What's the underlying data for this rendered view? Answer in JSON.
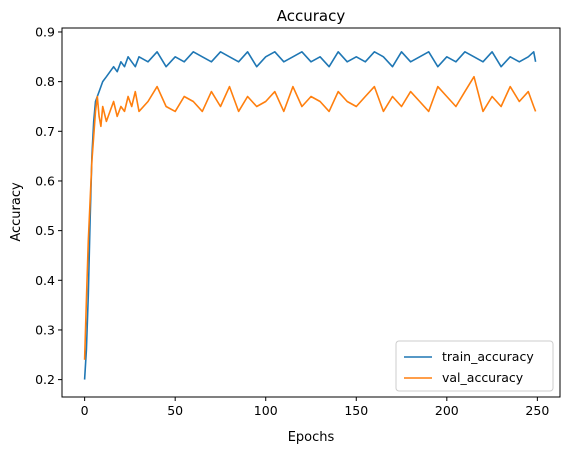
{
  "chart_data": {
    "type": "line",
    "title": "Accuracy",
    "xlabel": "Epochs",
    "ylabel": "Accuracy",
    "xlim": [
      -12.5,
      262.5
    ],
    "ylim": [
      0.165,
      0.908
    ],
    "xticks": [
      0,
      50,
      100,
      150,
      200,
      250
    ],
    "yticks": [
      0.2,
      0.3,
      0.4,
      0.5,
      0.6,
      0.7,
      0.8,
      0.9
    ],
    "grid": false,
    "legend_position": "lower-right",
    "series": [
      {
        "name": "train_accuracy",
        "color": "#1f77b4",
        "x": [
          0,
          1,
          2,
          3,
          4,
          5,
          6,
          7,
          8,
          9,
          10,
          12,
          14,
          16,
          18,
          20,
          22,
          24,
          26,
          28,
          30,
          35,
          40,
          45,
          50,
          55,
          60,
          65,
          70,
          75,
          80,
          85,
          90,
          95,
          100,
          105,
          110,
          115,
          120,
          125,
          130,
          135,
          140,
          145,
          150,
          155,
          160,
          165,
          170,
          175,
          180,
          185,
          190,
          195,
          200,
          205,
          210,
          215,
          220,
          225,
          230,
          235,
          240,
          245,
          248,
          249
        ],
        "values": [
          0.2,
          0.26,
          0.37,
          0.52,
          0.65,
          0.72,
          0.76,
          0.77,
          0.78,
          0.79,
          0.8,
          0.81,
          0.82,
          0.83,
          0.82,
          0.84,
          0.83,
          0.85,
          0.84,
          0.83,
          0.85,
          0.84,
          0.86,
          0.83,
          0.85,
          0.84,
          0.86,
          0.85,
          0.84,
          0.86,
          0.85,
          0.84,
          0.86,
          0.83,
          0.85,
          0.86,
          0.84,
          0.85,
          0.86,
          0.84,
          0.85,
          0.83,
          0.86,
          0.84,
          0.85,
          0.84,
          0.86,
          0.85,
          0.83,
          0.86,
          0.84,
          0.85,
          0.86,
          0.83,
          0.85,
          0.84,
          0.86,
          0.85,
          0.84,
          0.86,
          0.83,
          0.85,
          0.84,
          0.85,
          0.86,
          0.84
        ]
      },
      {
        "name": "val_accuracy",
        "color": "#ff7f0e",
        "x": [
          0,
          1,
          2,
          3,
          4,
          5,
          6,
          7,
          8,
          9,
          10,
          12,
          14,
          16,
          18,
          20,
          22,
          24,
          26,
          28,
          30,
          35,
          40,
          45,
          50,
          55,
          60,
          65,
          70,
          75,
          80,
          85,
          90,
          95,
          100,
          105,
          110,
          115,
          120,
          125,
          130,
          135,
          140,
          145,
          150,
          155,
          160,
          165,
          170,
          175,
          180,
          185,
          190,
          195,
          200,
          205,
          210,
          215,
          220,
          225,
          230,
          235,
          240,
          245,
          248,
          249
        ],
        "values": [
          0.24,
          0.36,
          0.48,
          0.56,
          0.64,
          0.69,
          0.74,
          0.77,
          0.73,
          0.71,
          0.75,
          0.72,
          0.74,
          0.76,
          0.73,
          0.75,
          0.74,
          0.77,
          0.75,
          0.78,
          0.74,
          0.76,
          0.79,
          0.75,
          0.74,
          0.77,
          0.76,
          0.74,
          0.78,
          0.75,
          0.79,
          0.74,
          0.77,
          0.75,
          0.76,
          0.78,
          0.74,
          0.79,
          0.75,
          0.77,
          0.76,
          0.74,
          0.78,
          0.76,
          0.75,
          0.77,
          0.79,
          0.74,
          0.77,
          0.75,
          0.78,
          0.76,
          0.74,
          0.79,
          0.77,
          0.75,
          0.78,
          0.81,
          0.74,
          0.77,
          0.75,
          0.79,
          0.76,
          0.78,
          0.75,
          0.74
        ]
      }
    ]
  }
}
